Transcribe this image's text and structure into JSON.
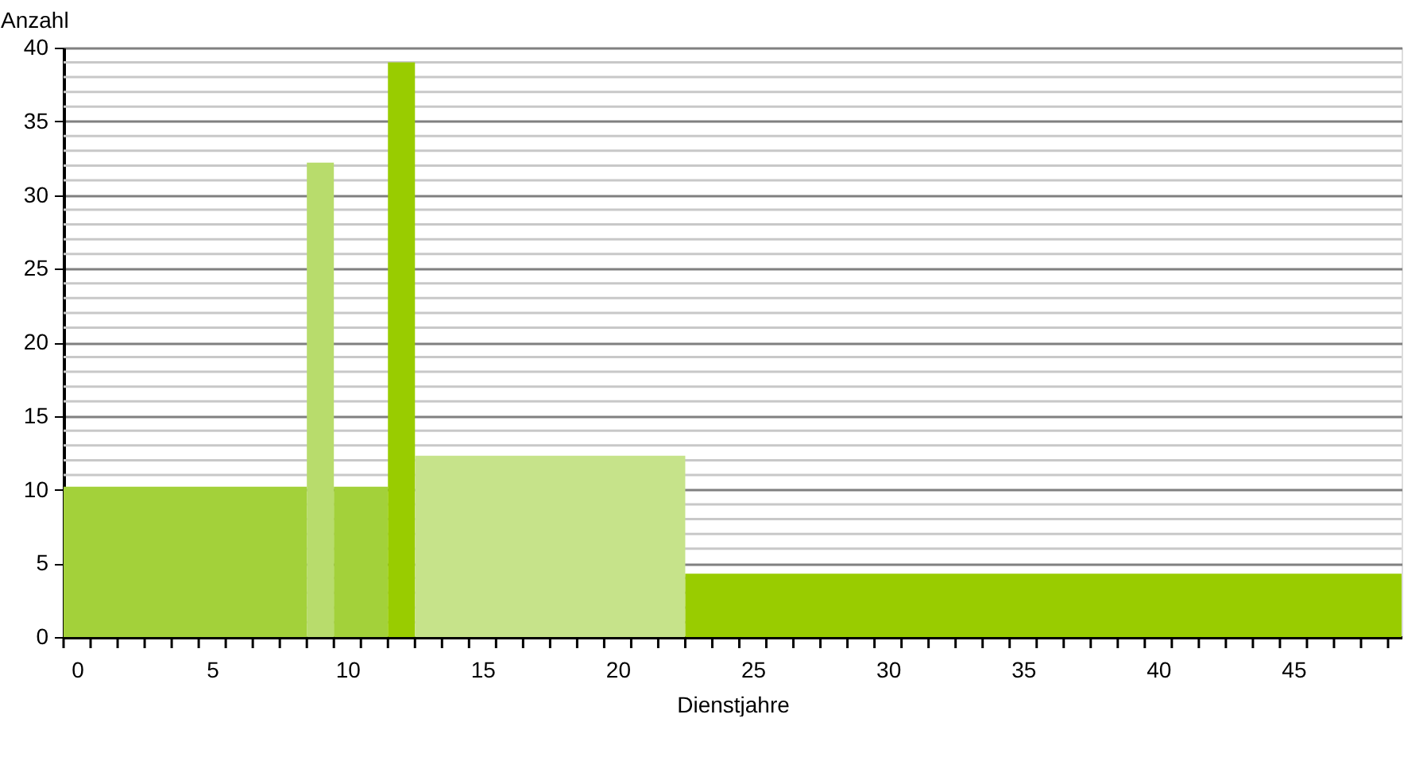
{
  "chart_data": {
    "type": "histogram",
    "xlabel": "Dienstjahre",
    "ylabel": "Anzahl",
    "bins": [
      -0.5,
      8.5,
      9.5,
      11.5,
      12.5,
      22.5,
      49
    ],
    "values": [
      10.2,
      32.2,
      10.2,
      39,
      12.3,
      4.3
    ],
    "colors": [
      "#a3d13a",
      "#b8dc6c",
      "#a3d13a",
      "#99cc00",
      "#c6e38a",
      "#99cc00"
    ],
    "xlim": [
      -0.5,
      49
    ],
    "xticks": [
      {
        "value": -0.5,
        "label": null
      },
      {
        "value": 0.5,
        "label": null
      },
      {
        "value": 1.5,
        "label": null
      },
      {
        "value": 2.5,
        "label": null
      },
      {
        "value": 3.5,
        "label": null
      },
      {
        "value": 4.5,
        "label": null
      },
      {
        "value": 5.5,
        "label": null
      },
      {
        "value": 6.5,
        "label": null
      },
      {
        "value": 7.5,
        "label": null
      },
      {
        "value": 8.5,
        "label": null
      },
      {
        "value": 9.5,
        "label": null
      },
      {
        "value": 10.5,
        "label": null
      },
      {
        "value": 11.5,
        "label": null
      },
      {
        "value": 12.5,
        "label": null
      },
      {
        "value": 13.5,
        "label": null
      },
      {
        "value": 14.5,
        "label": null
      },
      {
        "value": 15.5,
        "label": null
      },
      {
        "value": 16.5,
        "label": null
      },
      {
        "value": 17.5,
        "label": null
      },
      {
        "value": 18.5,
        "label": null
      },
      {
        "value": 19.5,
        "label": null
      },
      {
        "value": 20.5,
        "label": null
      },
      {
        "value": 21.5,
        "label": null
      },
      {
        "value": 22.5,
        "label": null
      },
      {
        "value": 23.5,
        "label": null
      },
      {
        "value": 24.5,
        "label": null
      },
      {
        "value": 25.5,
        "label": null
      },
      {
        "value": 26.5,
        "label": null
      },
      {
        "value": 27.5,
        "label": null
      },
      {
        "value": 28.5,
        "label": null
      },
      {
        "value": 29.5,
        "label": null
      },
      {
        "value": 30.5,
        "label": null
      },
      {
        "value": 31.5,
        "label": null
      },
      {
        "value": 32.5,
        "label": null
      },
      {
        "value": 33.5,
        "label": null
      },
      {
        "value": 34.5,
        "label": null
      },
      {
        "value": 35.5,
        "label": null
      },
      {
        "value": 36.5,
        "label": null
      },
      {
        "value": 37.5,
        "label": null
      },
      {
        "value": 38.5,
        "label": null
      },
      {
        "value": 39.5,
        "label": null
      },
      {
        "value": 40.5,
        "label": null
      },
      {
        "value": 41.5,
        "label": null
      },
      {
        "value": 42.5,
        "label": null
      },
      {
        "value": 43.5,
        "label": null
      },
      {
        "value": 44.5,
        "label": null
      },
      {
        "value": 45.5,
        "label": null
      },
      {
        "value": 46.5,
        "label": null
      },
      {
        "value": 47.5,
        "label": null
      },
      {
        "value": 48.5,
        "label": null
      },
      0,
      5,
      10,
      15,
      20,
      25,
      30,
      35,
      40,
      45
    ],
    "ylim": [
      0,
      40
    ],
    "yticks": [
      0,
      {
        "value": 1,
        "label": null
      },
      {
        "value": 2,
        "label": null
      },
      {
        "value": 3,
        "label": null
      },
      {
        "value": 4,
        "label": null
      },
      5,
      {
        "value": 6,
        "label": null
      },
      {
        "value": 7,
        "label": null
      },
      {
        "value": 8,
        "label": null
      },
      {
        "value": 9,
        "label": null
      },
      10,
      {
        "value": 11,
        "label": null
      },
      {
        "value": 12,
        "label": null
      },
      {
        "value": 13,
        "label": null
      },
      {
        "value": 14,
        "label": null
      },
      15,
      {
        "value": 16,
        "label": null
      },
      {
        "value": 17,
        "label": null
      },
      {
        "value": 18,
        "label": null
      },
      {
        "value": 19,
        "label": null
      },
      20,
      {
        "value": 21,
        "label": null
      },
      {
        "value": 22,
        "label": null
      },
      {
        "value": 23,
        "label": null
      },
      {
        "value": 24,
        "label": null
      },
      25,
      {
        "value": 26,
        "label": null
      },
      {
        "value": 27,
        "label": null
      },
      {
        "value": 28,
        "label": null
      },
      {
        "value": 29,
        "label": null
      },
      30,
      {
        "value": 31,
        "label": null
      },
      {
        "value": 32,
        "label": null
      },
      {
        "value": 33,
        "label": null
      },
      {
        "value": 34,
        "label": null
      },
      35,
      {
        "value": 36,
        "label": null
      },
      {
        "value": 37,
        "label": null
      },
      {
        "value": 38,
        "label": null
      },
      {
        "value": 39,
        "label": null
      },
      40
    ],
    "grid": "y"
  }
}
